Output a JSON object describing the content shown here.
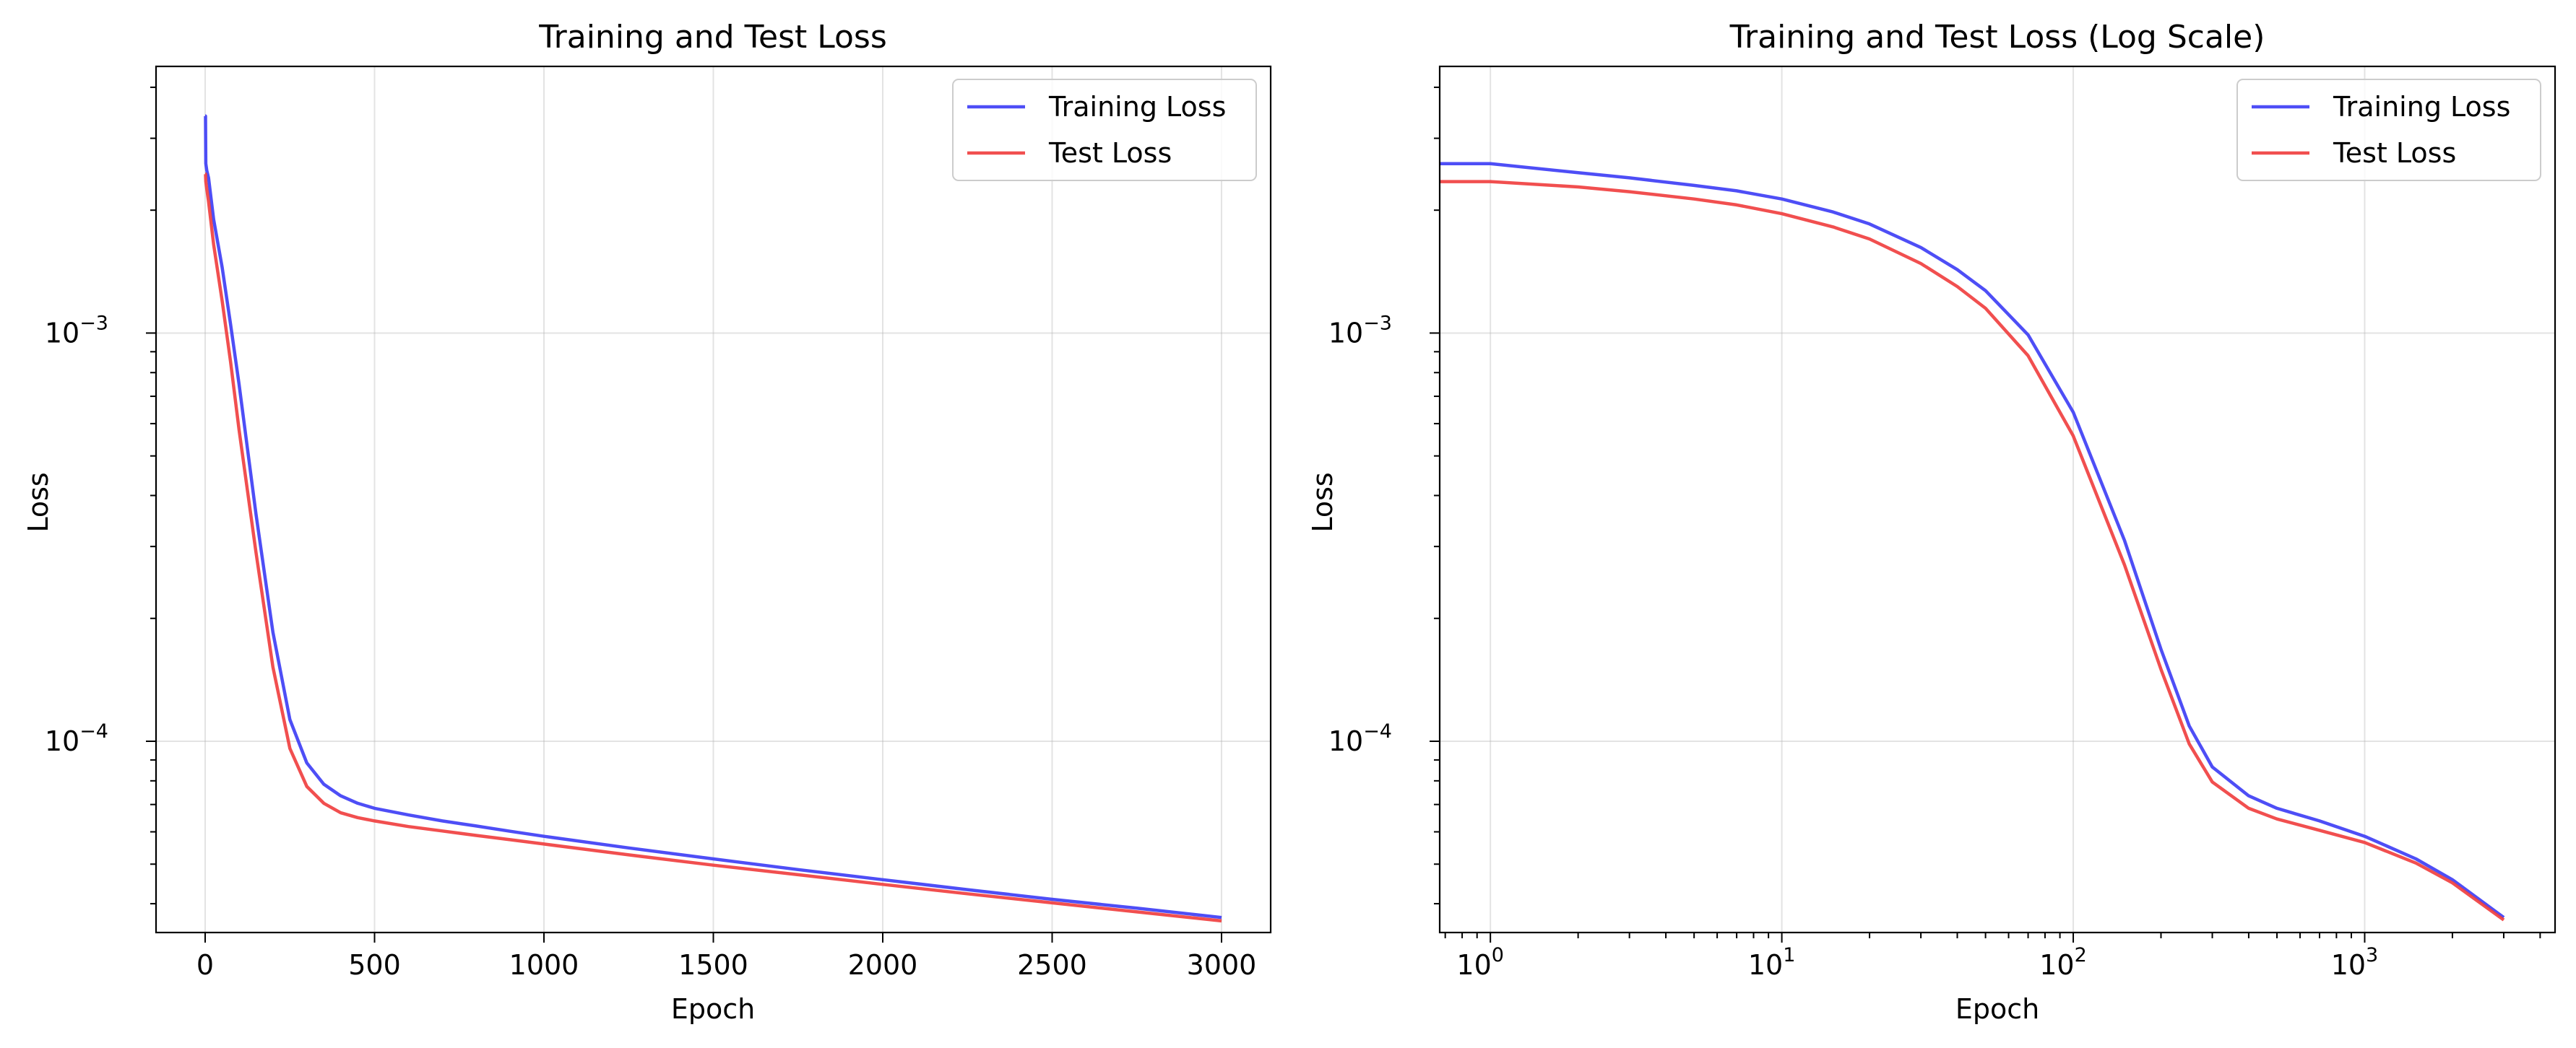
{
  "chart_data": [
    {
      "type": "line",
      "title": "Training and Test Loss",
      "xlabel": "Epoch",
      "ylabel": "Loss",
      "xscale": "linear",
      "yscale": "log",
      "xlim": [
        -145,
        3145
      ],
      "ylim": [
        3.4e-05,
        0.0045
      ],
      "xticks": [
        0,
        500,
        1000,
        1500,
        2000,
        2500,
        3000
      ],
      "xtick_labels": [
        "0",
        "500",
        "1000",
        "1500",
        "2000",
        "2500",
        "3000"
      ],
      "ytick_labels": [
        {
          "base": "10",
          "exp": "−3"
        },
        {
          "base": "10",
          "exp": "−4"
        }
      ],
      "grid": true,
      "legend": "top-right",
      "series": [
        {
          "name": "Training Loss",
          "color": "#3b3bf5",
          "x": [
            0,
            1,
            2,
            5,
            10,
            25,
            50,
            75,
            100,
            150,
            200,
            250,
            300,
            350,
            400,
            450,
            500,
            600,
            700,
            800,
            900,
            1000,
            1250,
            1500,
            1750,
            2000,
            2250,
            2500,
            2750,
            3000
          ],
          "y": [
            0.0034,
            0.0034,
            0.0026,
            0.0025,
            0.0024,
            0.0019,
            0.00145,
            0.00105,
            0.00075,
            0.00036,
            0.000185,
            0.000113,
            8.85e-05,
            7.85e-05,
            7.35e-05,
            7.05e-05,
            6.85e-05,
            6.6e-05,
            6.38e-05,
            6.2e-05,
            6.02e-05,
            5.85e-05,
            5.48e-05,
            5.15e-05,
            4.85e-05,
            4.58e-05,
            4.33e-05,
            4.1e-05,
            3.9e-05,
            3.7e-05
          ]
        },
        {
          "name": "Test Loss",
          "color": "#f03c3c",
          "x": [
            0,
            1,
            2,
            5,
            10,
            25,
            50,
            75,
            100,
            150,
            200,
            250,
            300,
            350,
            400,
            450,
            500,
            600,
            700,
            800,
            900,
            1000,
            1250,
            1500,
            1750,
            2000,
            2250,
            2500,
            2750,
            3000
          ],
          "y": [
            0.00245,
            0.00245,
            0.00235,
            0.00225,
            0.0021,
            0.00165,
            0.0012,
            0.00085,
            0.00058,
            0.00029,
            0.000152,
            9.6e-05,
            7.75e-05,
            7.05e-05,
            6.68e-05,
            6.5e-05,
            6.38e-05,
            6.18e-05,
            6.03e-05,
            5.88e-05,
            5.74e-05,
            5.6e-05,
            5.27e-05,
            4.97e-05,
            4.71e-05,
            4.46e-05,
            4.23e-05,
            4.02e-05,
            3.82e-05,
            3.63e-05
          ]
        }
      ]
    },
    {
      "type": "line",
      "title": "Training and Test Loss (Log Scale)",
      "xlabel": "Epoch",
      "ylabel": "Loss",
      "xscale": "log",
      "yscale": "log",
      "xlim": [
        0.67,
        4500
      ],
      "ylim": [
        3.4e-05,
        0.0045
      ],
      "xtick_labels": [
        {
          "base": "10",
          "exp": "0"
        },
        {
          "base": "10",
          "exp": "1"
        },
        {
          "base": "10",
          "exp": "2"
        },
        {
          "base": "10",
          "exp": "3"
        }
      ],
      "ytick_labels": [
        {
          "base": "10",
          "exp": "−3"
        },
        {
          "base": "10",
          "exp": "−4"
        }
      ],
      "grid": true,
      "legend": "top-right",
      "series": [
        {
          "name": "Training Loss",
          "color": "#3b3bf5",
          "x": [
            0.67,
            1,
            2,
            3,
            5,
            7,
            10,
            15,
            20,
            30,
            40,
            50,
            70,
            100,
            150,
            200,
            250,
            300,
            400,
            500,
            700,
            1000,
            1500,
            2000,
            3000
          ],
          "y": [
            0.0026,
            0.0026,
            0.00247,
            0.0024,
            0.0023,
            0.00223,
            0.00213,
            0.00198,
            0.00185,
            0.00162,
            0.00143,
            0.00127,
            0.00099,
            0.00064,
            0.00031,
            0.000168,
            0.000109,
            8.65e-05,
            7.35e-05,
            6.85e-05,
            6.38e-05,
            5.85e-05,
            5.15e-05,
            4.58e-05,
            3.7e-05
          ]
        },
        {
          "name": "Test Loss",
          "color": "#f03c3c",
          "x": [
            0.67,
            1,
            2,
            3,
            5,
            7,
            10,
            15,
            20,
            30,
            40,
            50,
            70,
            100,
            150,
            200,
            250,
            300,
            400,
            500,
            700,
            1000,
            1500,
            2000,
            3000
          ],
          "y": [
            0.00235,
            0.00235,
            0.00228,
            0.00222,
            0.00213,
            0.00206,
            0.00196,
            0.00182,
            0.0017,
            0.00148,
            0.0013,
            0.00115,
            0.00088,
            0.00056,
            0.00027,
            0.00015,
            9.85e-05,
            7.95e-05,
            6.85e-05,
            6.45e-05,
            6.05e-05,
            5.65e-05,
            5.03e-05,
            4.5e-05,
            3.65e-05
          ]
        }
      ]
    }
  ]
}
